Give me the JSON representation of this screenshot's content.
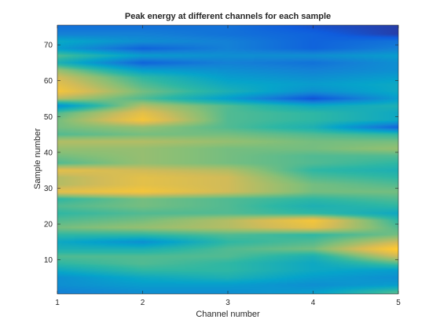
{
  "chart_data": {
    "type": "heatmap",
    "title": "Peak energy at different channels for each sample",
    "xlabel": "Channel number",
    "ylabel": "Sample number",
    "xlim": [
      1,
      5
    ],
    "ylim": [
      0.5,
      75.5
    ],
    "x_ticks": [
      1,
      2,
      3,
      4,
      5
    ],
    "y_ticks": [
      10,
      20,
      30,
      40,
      50,
      60,
      70
    ],
    "grid": false,
    "colormap": "parula",
    "colormap_stops": [
      "#352a87",
      "#0f5cdd",
      "#1481d6",
      "#06a4ca",
      "#2eb7a4",
      "#87bf77",
      "#d1bb59",
      "#fec832",
      "#f9fb0e"
    ],
    "shading": "interpolated",
    "samples": [
      {
        "y": 1,
        "v": [
          0.25,
          0.3,
          0.3,
          0.35,
          0.55
        ]
      },
      {
        "y": 3,
        "v": [
          0.3,
          0.35,
          0.35,
          0.3,
          0.35
        ]
      },
      {
        "y": 5,
        "v": [
          0.3,
          0.4,
          0.45,
          0.35,
          0.3
        ]
      },
      {
        "y": 7,
        "v": [
          0.4,
          0.5,
          0.5,
          0.4,
          0.35
        ]
      },
      {
        "y": 9,
        "v": [
          0.5,
          0.55,
          0.5,
          0.4,
          0.55
        ]
      },
      {
        "y": 11,
        "v": [
          0.55,
          0.55,
          0.55,
          0.45,
          0.75
        ]
      },
      {
        "y": 13,
        "v": [
          0.45,
          0.45,
          0.55,
          0.6,
          0.9
        ]
      },
      {
        "y": 15,
        "v": [
          0.4,
          0.3,
          0.5,
          0.55,
          0.75
        ]
      },
      {
        "y": 17,
        "v": [
          0.5,
          0.5,
          0.55,
          0.5,
          0.6
        ]
      },
      {
        "y": 19,
        "v": [
          0.6,
          0.65,
          0.7,
          0.8,
          0.55
        ]
      },
      {
        "y": 21,
        "v": [
          0.55,
          0.6,
          0.7,
          0.85,
          0.5
        ]
      },
      {
        "y": 23,
        "v": [
          0.5,
          0.55,
          0.55,
          0.5,
          0.4
        ]
      },
      {
        "y": 25,
        "v": [
          0.55,
          0.6,
          0.55,
          0.45,
          0.5
        ]
      },
      {
        "y": 27,
        "v": [
          0.5,
          0.6,
          0.55,
          0.5,
          0.55
        ]
      },
      {
        "y": 29,
        "v": [
          0.8,
          0.85,
          0.75,
          0.6,
          0.6
        ]
      },
      {
        "y": 31,
        "v": [
          0.7,
          0.8,
          0.75,
          0.6,
          0.55
        ]
      },
      {
        "y": 33,
        "v": [
          0.7,
          0.8,
          0.75,
          0.55,
          0.5
        ]
      },
      {
        "y": 35,
        "v": [
          0.8,
          0.75,
          0.7,
          0.5,
          0.45
        ]
      },
      {
        "y": 37,
        "v": [
          0.55,
          0.65,
          0.6,
          0.55,
          0.5
        ]
      },
      {
        "y": 39,
        "v": [
          0.6,
          0.65,
          0.6,
          0.55,
          0.55
        ]
      },
      {
        "y": 41,
        "v": [
          0.65,
          0.65,
          0.6,
          0.6,
          0.65
        ]
      },
      {
        "y": 43,
        "v": [
          0.7,
          0.7,
          0.65,
          0.6,
          0.6
        ]
      },
      {
        "y": 45,
        "v": [
          0.55,
          0.6,
          0.6,
          0.55,
          0.5
        ]
      },
      {
        "y": 47,
        "v": [
          0.6,
          0.65,
          0.55,
          0.45,
          0.15
        ]
      },
      {
        "y": 49,
        "v": [
          0.6,
          0.85,
          0.55,
          0.5,
          0.4
        ]
      },
      {
        "y": 51,
        "v": [
          0.55,
          0.8,
          0.55,
          0.5,
          0.4
        ]
      },
      {
        "y": 53,
        "v": [
          0.3,
          0.7,
          0.55,
          0.4,
          0.45
        ]
      },
      {
        "y": 55,
        "v": [
          0.7,
          0.55,
          0.35,
          0.1,
          0.35
        ]
      },
      {
        "y": 57,
        "v": [
          0.85,
          0.6,
          0.45,
          0.3,
          0.4
        ]
      },
      {
        "y": 59,
        "v": [
          0.8,
          0.55,
          0.4,
          0.35,
          0.4
        ]
      },
      {
        "y": 61,
        "v": [
          0.75,
          0.5,
          0.35,
          0.3,
          0.35
        ]
      },
      {
        "y": 63,
        "v": [
          0.65,
          0.35,
          0.3,
          0.25,
          0.3
        ]
      },
      {
        "y": 65,
        "v": [
          0.45,
          0.15,
          0.25,
          0.2,
          0.3
        ]
      },
      {
        "y": 67,
        "v": [
          0.55,
          0.35,
          0.3,
          0.3,
          0.35
        ]
      },
      {
        "y": 69,
        "v": [
          0.35,
          0.15,
          0.25,
          0.15,
          0.25
        ]
      },
      {
        "y": 71,
        "v": [
          0.4,
          0.3,
          0.25,
          0.15,
          0.2
        ]
      },
      {
        "y": 73,
        "v": [
          0.25,
          0.25,
          0.2,
          0.15,
          0.05
        ]
      },
      {
        "y": 75,
        "v": [
          0.2,
          0.2,
          0.2,
          0.1,
          0.05
        ]
      }
    ]
  }
}
